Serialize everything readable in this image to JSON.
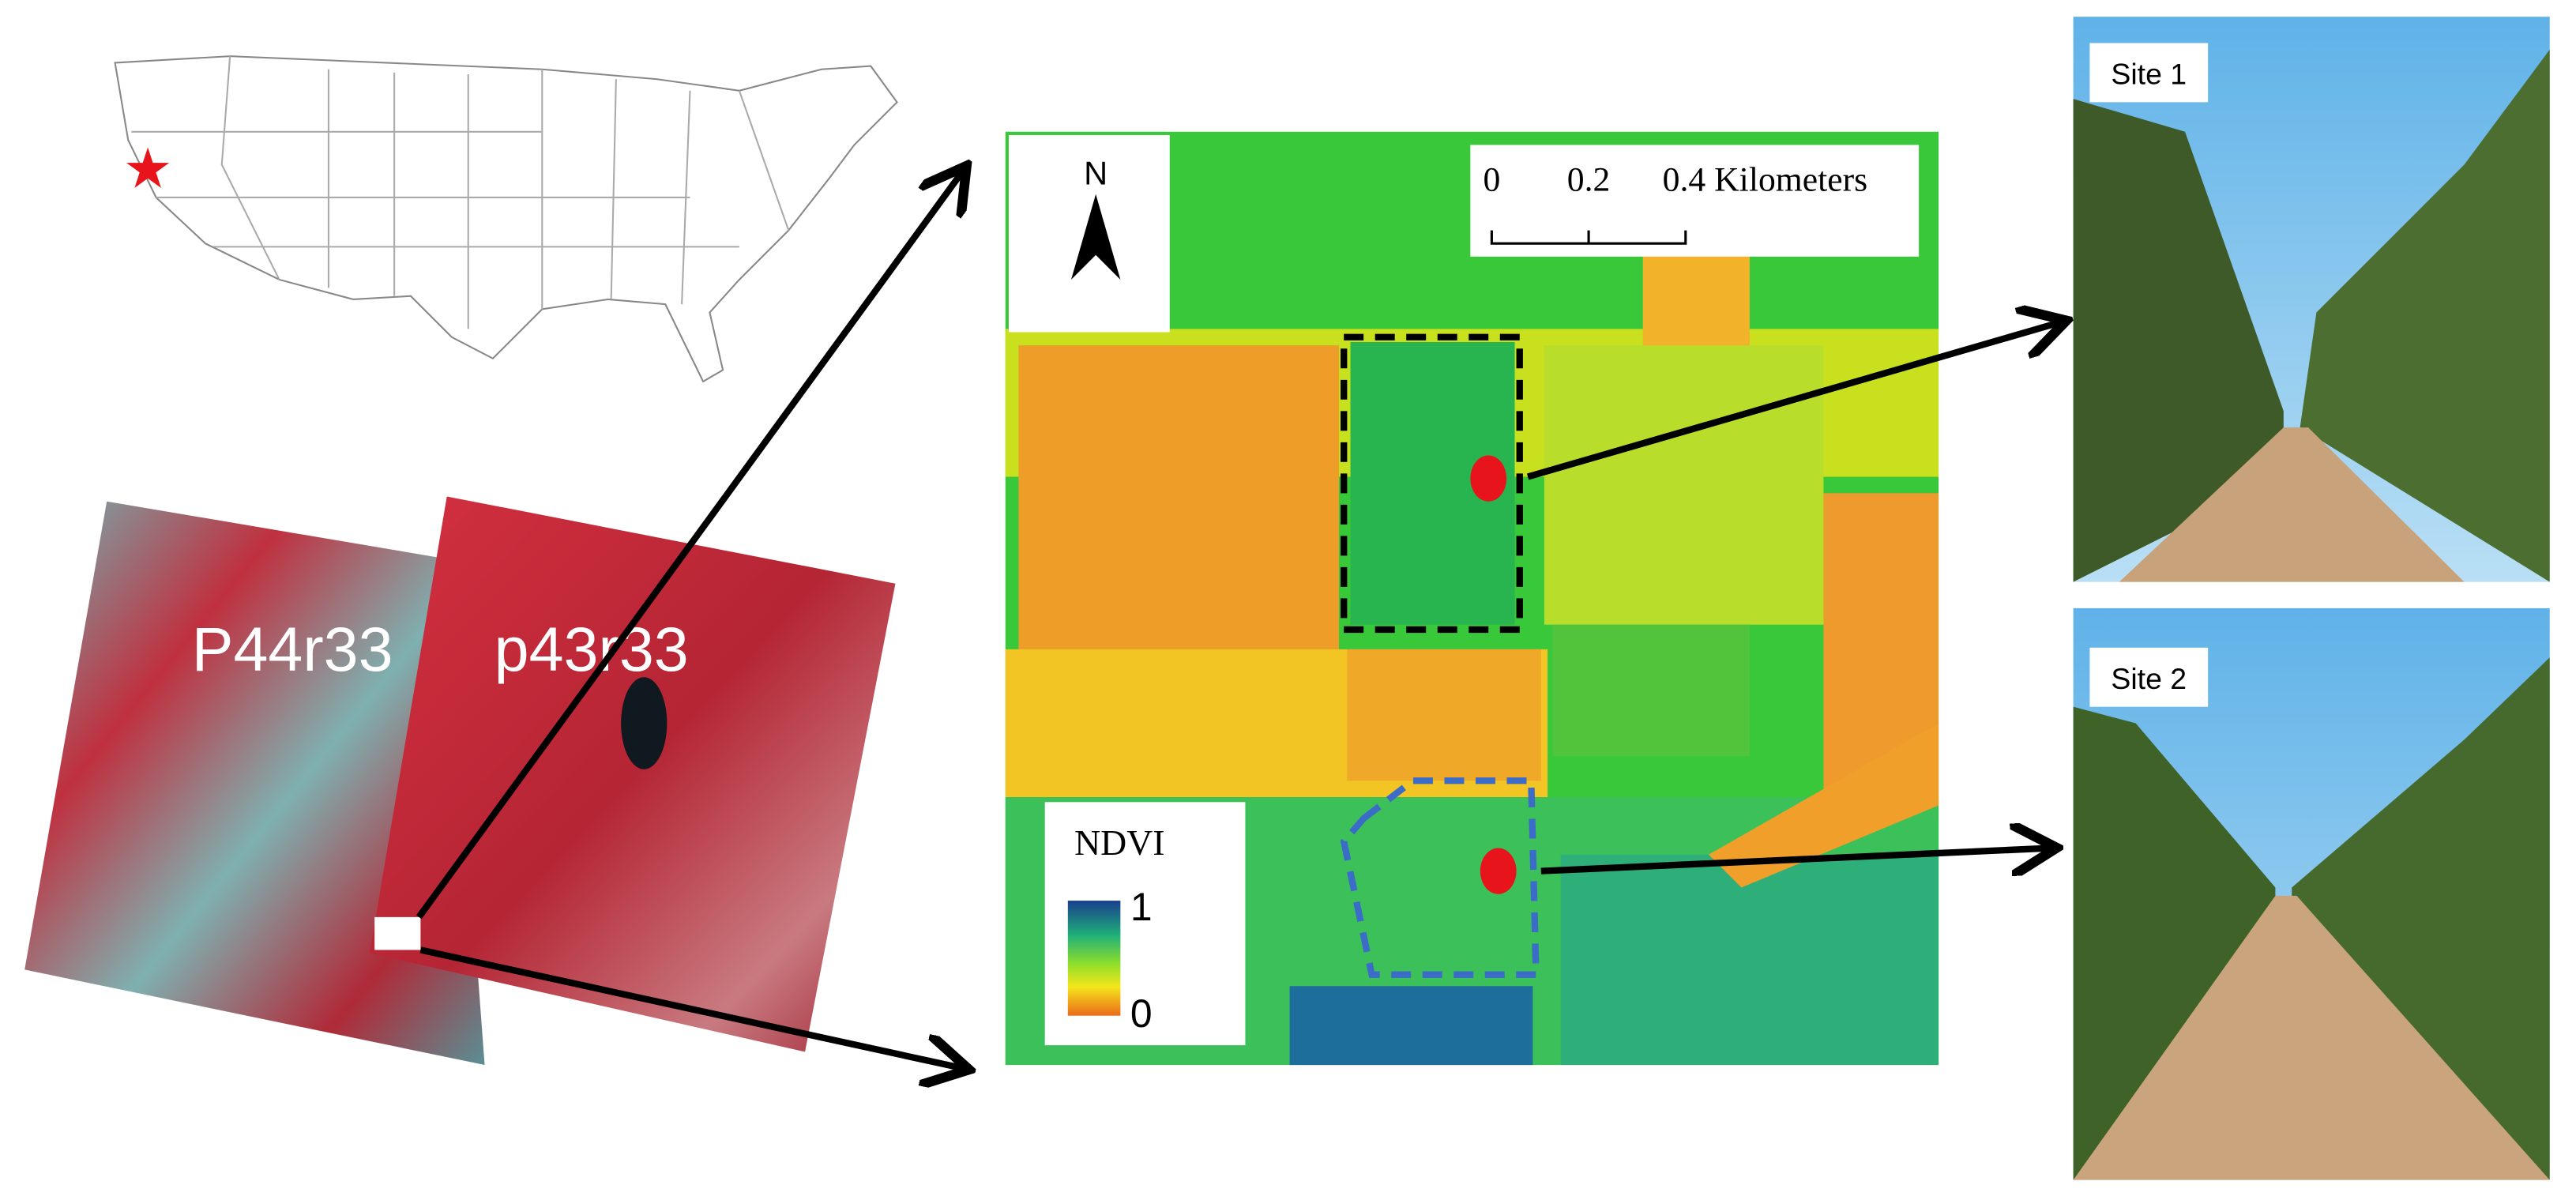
{
  "scenes": {
    "path_labels": [
      "P44r33",
      "p43r33"
    ]
  },
  "map": {
    "north": "N",
    "scale_labels": [
      "0",
      "0.2",
      "0.4 Kilometers"
    ],
    "legend": {
      "title": "NDVI",
      "high": "1",
      "low": "0"
    }
  },
  "photos": [
    {
      "label": "Site 1"
    },
    {
      "label": "Site 2"
    }
  ]
}
